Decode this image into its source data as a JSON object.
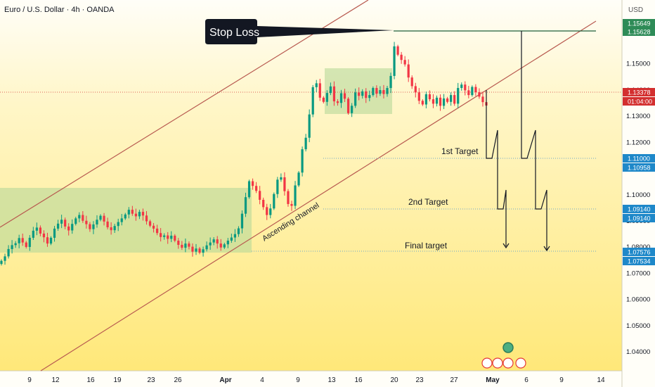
{
  "header": {
    "title": "Euro / U.S. Dollar · 4h · OANDA",
    "currency": "USD"
  },
  "chart_data": {
    "type": "candlestick",
    "ylim": [
      1.0325,
      1.1655
    ],
    "y_ticks": [
      "1.15000",
      "1.14000",
      "1.13000",
      "1.12000",
      "1.11000",
      "1.10000",
      "1.09000",
      "1.08000",
      "1.07000",
      "1.06000",
      "1.05000",
      "1.04000"
    ],
    "x_ticks": [
      "9",
      "12",
      "16",
      "19",
      "23",
      "26",
      "Apr",
      "4",
      "9",
      "13",
      "16",
      "20",
      "23",
      "27",
      "May",
      "6",
      "9",
      "14"
    ],
    "price_labels": [
      {
        "text": "1.15649",
        "color": "#2e8b57"
      },
      {
        "text": "1.15628",
        "color": "#2e8b57"
      },
      {
        "text": "1.13378",
        "color": "#d32f2f"
      },
      {
        "text": "01:04:00",
        "color": "#d32f2f"
      },
      {
        "text": "1.11000",
        "color": "#1e88c9"
      },
      {
        "text": "1.10958",
        "color": "#1e88c9"
      },
      {
        "text": "1.09140",
        "color": "#1e88c9"
      },
      {
        "text": "1.09140",
        "color": "#1e88c9"
      },
      {
        "text": "1.07576",
        "color": "#1e88c9"
      },
      {
        "text": "1.07534",
        "color": "#1e88c9"
      }
    ],
    "annotations": {
      "stop_loss": "Stop Loss",
      "target1": "1st Target",
      "target2": "2nd Target",
      "final": "Final target",
      "channel": "Ascending channel"
    },
    "levels": {
      "stop_loss": 1.1564,
      "current": 1.13378,
      "target1": 1.11,
      "target2": 1.0914,
      "final": 1.0755
    },
    "series": [
      {
        "values": [
          1.0745,
          1.0762,
          1.079,
          1.0805,
          1.0812,
          1.0832,
          1.0815,
          1.0798,
          1.0833,
          1.086,
          1.0872,
          1.0849,
          1.0835,
          1.0811,
          1.0833,
          1.0868,
          1.0887,
          1.0902,
          1.0876,
          1.0861,
          1.0886,
          1.0907,
          1.092,
          1.0898,
          1.0885,
          1.0866,
          1.0884,
          1.0902,
          1.0917,
          1.0895,
          1.0873,
          1.0862,
          1.0878,
          1.0893,
          1.0907,
          1.0922,
          1.094,
          1.0925,
          1.0915,
          1.0932,
          1.0918,
          1.0896,
          1.0879,
          1.0868,
          1.0851,
          1.0836,
          1.0842,
          1.0829,
          1.0841,
          1.0822,
          1.0806,
          1.0795,
          1.0811,
          1.0799,
          1.078,
          1.0792,
          1.0776,
          1.0789,
          1.0804,
          1.0815,
          1.0827,
          1.0811,
          1.0796,
          1.0808,
          1.0822,
          1.0834,
          1.0847,
          1.0869,
          1.0925,
          1.0988,
          1.1049,
          1.1031,
          1.1012,
          1.0978,
          1.095,
          1.092,
          1.0945,
          1.1,
          1.1055,
          1.1064,
          1.1011,
          1.0962,
          1.0955,
          1.1033,
          1.1082,
          1.1171,
          1.1215,
          1.1304,
          1.1408,
          1.1423,
          1.1368,
          1.1352,
          1.1386,
          1.1411,
          1.1354,
          1.1348,
          1.1385,
          1.1364,
          1.1309,
          1.1337,
          1.1388,
          1.1375,
          1.1392,
          1.1367,
          1.1378,
          1.1405,
          1.1383,
          1.1397,
          1.1382,
          1.1405,
          1.1451,
          1.1564,
          1.1532,
          1.1512,
          1.1495,
          1.1445,
          1.1412,
          1.1388,
          1.1356,
          1.1342,
          1.1381,
          1.1362,
          1.1345,
          1.1368,
          1.1337,
          1.1365,
          1.1352,
          1.1378,
          1.1345,
          1.1405,
          1.1418,
          1.1396,
          1.1378,
          1.1409,
          1.1389,
          1.1372,
          1.1351,
          1.1338
        ]
      }
    ]
  }
}
